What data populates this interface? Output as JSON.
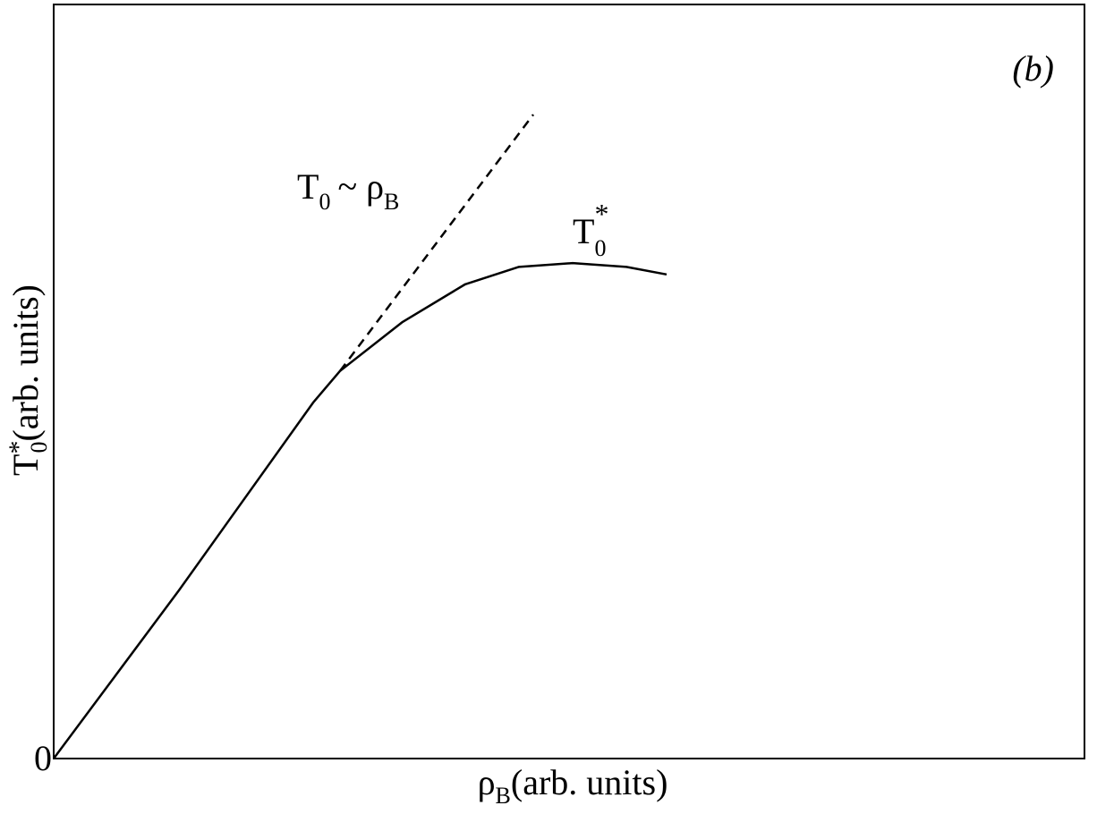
{
  "chart_data": {
    "type": "line",
    "panel_label": "(b)",
    "xlabel": [
      "ρ",
      "B",
      "(arb. units)"
    ],
    "ylabel": [
      "T",
      "*",
      "0",
      "(arb. units)"
    ],
    "annotations": [
      {
        "text": [
          "T",
          "0",
          "~  ρ",
          "B"
        ]
      },
      {
        "text": [
          "T",
          "*",
          "0"
        ]
      }
    ],
    "xlim": [
      0,
      100
    ],
    "ylim": [
      0,
      100
    ],
    "yticks": [
      0
    ],
    "series": [
      {
        "color": "#000000",
        "dash": false,
        "x": [
          0,
          12.15,
          25.17,
          27.78,
          33.85,
          39.93,
          45.14,
          50.35,
          55.56,
          59.46
        ],
        "values": [
          0,
          22.3,
          47.2,
          51.4,
          57.9,
          62.9,
          65.2,
          65.7,
          65.2,
          64.2
        ]
      },
      {
        "color": "#000000",
        "dash": true,
        "x": [
          27.78,
          46.53
        ],
        "values": [
          51.4,
          85.4
        ]
      }
    ]
  }
}
